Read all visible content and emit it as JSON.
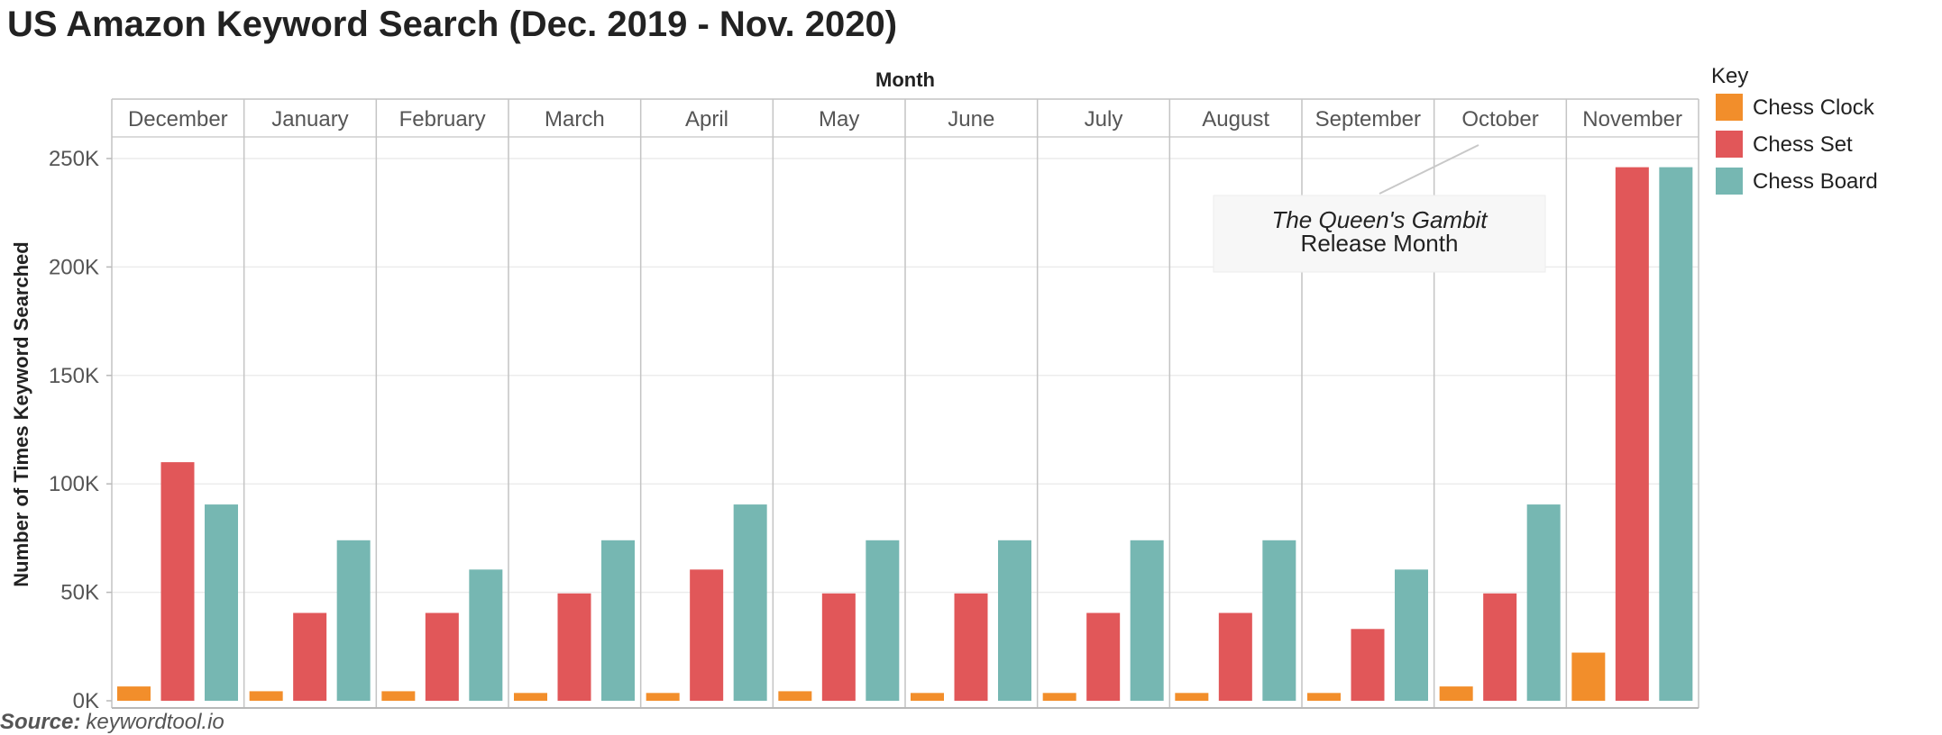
{
  "chart_data": {
    "type": "bar",
    "title": "US Amazon Keyword Search (Dec. 2019 - Nov. 2020)",
    "column_header": "Month",
    "ylabel": "Number of Times Keyword Searched",
    "xlabel": "",
    "ylim": [
      0,
      250000
    ],
    "yticks": [
      0,
      50000,
      100000,
      150000,
      200000,
      250000
    ],
    "ytick_labels": [
      "0K",
      "50K",
      "100K",
      "150K",
      "200K",
      "250K"
    ],
    "grid": true,
    "categories": [
      "December",
      "January",
      "February",
      "March",
      "April",
      "May",
      "June",
      "July",
      "August",
      "September",
      "October",
      "November"
    ],
    "series": [
      {
        "name": "Chess Clock",
        "color": "#f28e2b",
        "values": [
          6600,
          4400,
          4400,
          3600,
          3600,
          4400,
          3600,
          3600,
          3600,
          3600,
          6600,
          22200
        ]
      },
      {
        "name": "Chess Set",
        "color": "#e15759",
        "values": [
          110000,
          40500,
          40500,
          49500,
          60500,
          49500,
          49500,
          40500,
          40500,
          33100,
          49500,
          246000
        ]
      },
      {
        "name": "Chess Board",
        "color": "#76b7b2",
        "values": [
          90500,
          74000,
          60500,
          74000,
          90500,
          74000,
          74000,
          74000,
          74000,
          60500,
          90500,
          246000
        ]
      }
    ],
    "legend": {
      "title": "Key",
      "placement": "right"
    },
    "annotation": {
      "line1": "The Queen's Gambit",
      "line2": "Release Month",
      "target": "October"
    },
    "source": {
      "label": "Source:",
      "text": "keywordtool.io"
    }
  }
}
